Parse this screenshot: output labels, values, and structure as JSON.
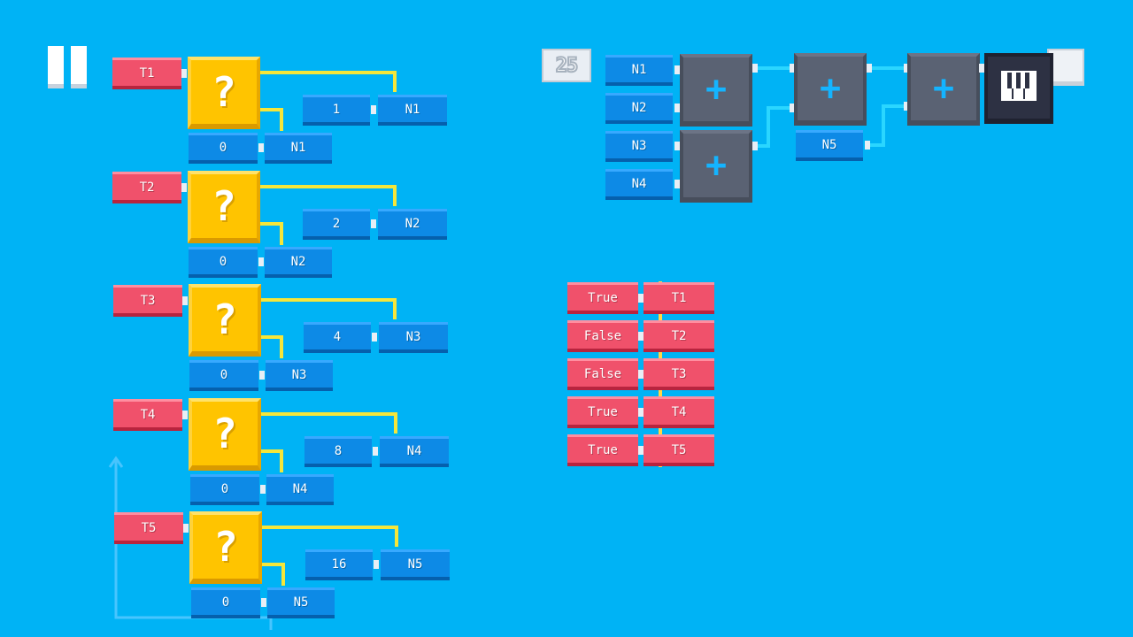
{
  "level_number": "25",
  "icons": {
    "pause": "pause-icon",
    "piano": "piano-keyboard-icon",
    "plus": "plus-icon",
    "question": "question-mark-icon",
    "stop": "stop-square-icon"
  },
  "colors": {
    "background": "#00b3f5",
    "boolean_block": "#f0516b",
    "number_block": "#0d8ae6",
    "condition_block": "#ffc400",
    "operator_block": "#5a6273",
    "wire_yellow": "#f5e63a",
    "wire_cyan": "#2ad6ff"
  },
  "conditionals": [
    {
      "cond": "T1",
      "symbol": "?",
      "value": "1",
      "target": "N1",
      "else_value": "0",
      "else_target": "N1"
    },
    {
      "cond": "T2",
      "symbol": "?",
      "value": "2",
      "target": "N2",
      "else_value": "0",
      "else_target": "N2"
    },
    {
      "cond": "T3",
      "symbol": "?",
      "value": "4",
      "target": "N3",
      "else_value": "0",
      "else_target": "N3"
    },
    {
      "cond": "T4",
      "symbol": "?",
      "value": "8",
      "target": "N4",
      "else_value": "0",
      "else_target": "N4"
    },
    {
      "cond": "T5",
      "symbol": "?",
      "value": "16",
      "target": "N5",
      "else_value": "0",
      "else_target": "N5"
    }
  ],
  "sum": {
    "inputs": [
      "N1",
      "N2",
      "N3",
      "N4"
    ],
    "extra_input": "N5",
    "operator": "+"
  },
  "assignments": [
    {
      "value": "True",
      "var": "T1"
    },
    {
      "value": "False",
      "var": "T2"
    },
    {
      "value": "False",
      "var": "T3"
    },
    {
      "value": "True",
      "var": "T4"
    },
    {
      "value": "True",
      "var": "T5"
    }
  ]
}
